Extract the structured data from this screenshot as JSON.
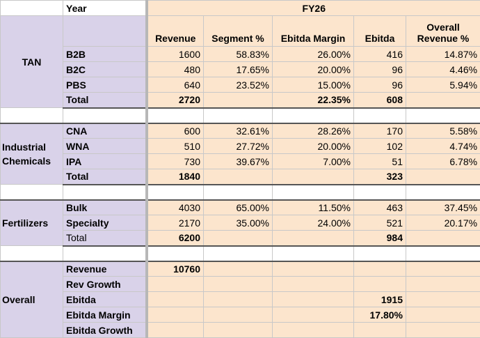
{
  "header": {
    "year_label": "Year",
    "fy_label": "FY26"
  },
  "columns": {
    "revenue": "Revenue",
    "segment": "Segment %",
    "ebitda_margin": "Ebitda Margin",
    "ebitda": "Ebitda",
    "overall_revenue": "Overall Revenue %"
  },
  "tan": {
    "label": "TAN",
    "rows": [
      {
        "name": "B2B",
        "revenue": "1600",
        "segment": "58.83%",
        "margin": "26.00%",
        "ebitda": "416",
        "overall": "14.87%"
      },
      {
        "name": "B2C",
        "revenue": "480",
        "segment": "17.65%",
        "margin": "20.00%",
        "ebitda": "96",
        "overall": "4.46%"
      },
      {
        "name": "PBS",
        "revenue": "640",
        "segment": "23.52%",
        "margin": "15.00%",
        "ebitda": "96",
        "overall": "5.94%"
      }
    ],
    "total": {
      "name": "Total",
      "revenue": "2720",
      "margin": "22.35%",
      "ebitda": "608"
    }
  },
  "industrial": {
    "label": "Industrial Chemicals",
    "rows": [
      {
        "name": "CNA",
        "revenue": "600",
        "segment": "32.61%",
        "margin": "28.26%",
        "ebitda": "170",
        "overall": "5.58%"
      },
      {
        "name": "WNA",
        "revenue": "510",
        "segment": "27.72%",
        "margin": "20.00%",
        "ebitda": "102",
        "overall": "4.74%"
      },
      {
        "name": "IPA",
        "revenue": "730",
        "segment": "39.67%",
        "margin": "7.00%",
        "ebitda": "51",
        "overall": "6.78%"
      }
    ],
    "total": {
      "name": "Total",
      "revenue": "1840",
      "ebitda": "323"
    }
  },
  "fertilizers": {
    "label": "Fertilizers",
    "rows": [
      {
        "name": "Bulk",
        "revenue": "4030",
        "segment": "65.00%",
        "margin": "11.50%",
        "ebitda": "463",
        "overall": "37.45%"
      },
      {
        "name": "Specialty",
        "revenue": "2170",
        "segment": "35.00%",
        "margin": "24.00%",
        "ebitda": "521",
        "overall": "20.17%"
      }
    ],
    "total": {
      "name": "Total",
      "revenue": "6200",
      "ebitda": "984"
    }
  },
  "overall": {
    "label": "Overall",
    "rows": [
      {
        "name": "Revenue",
        "value": "10760"
      },
      {
        "name": "Rev Growth"
      },
      {
        "name": "Ebitda",
        "value": "1915"
      },
      {
        "name": "Ebitda Margin",
        "value": "17.80%"
      },
      {
        "name": "Ebitda Growth"
      }
    ]
  },
  "colors": {
    "lavender": "#d9d2e9",
    "peach": "#fce5cd"
  }
}
